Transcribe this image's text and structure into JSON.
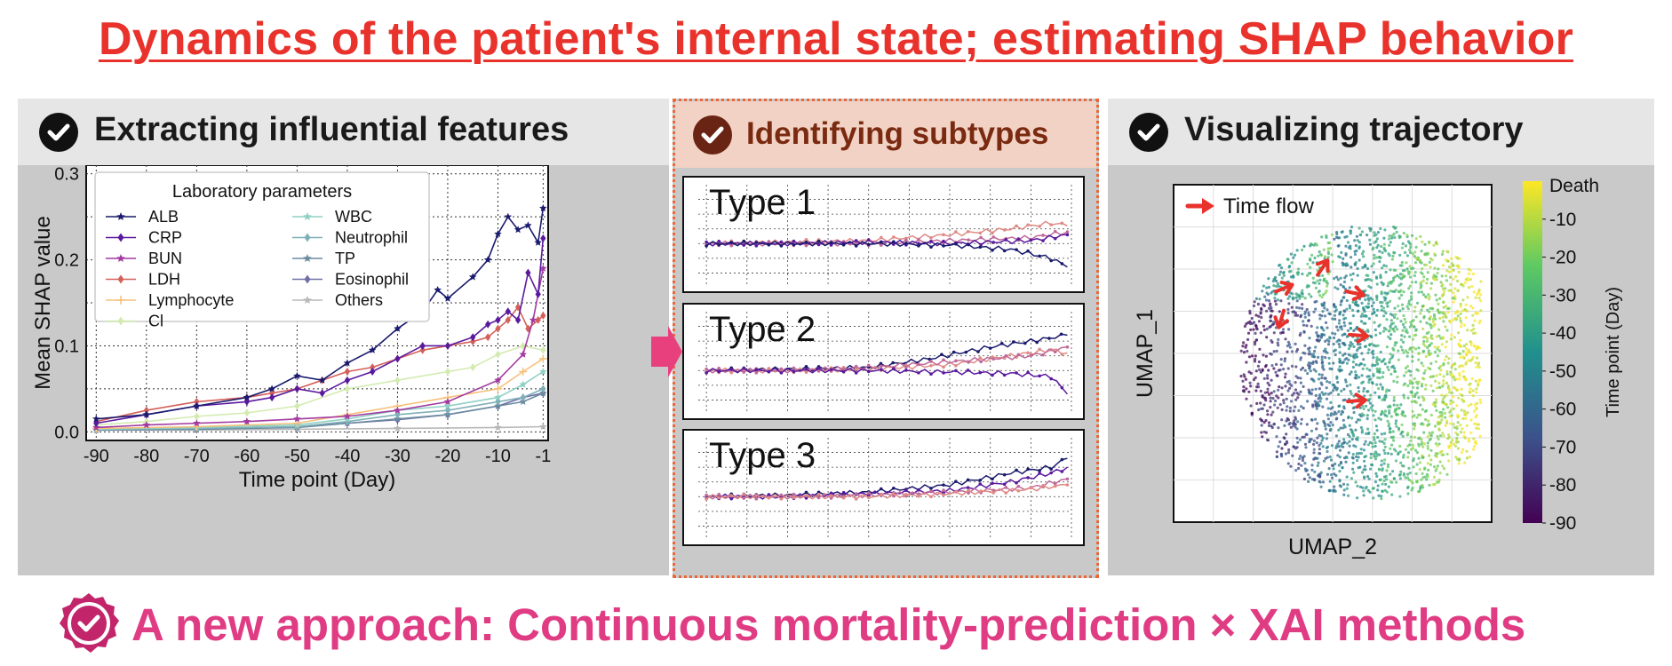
{
  "header": {
    "title": "Dynamics of the patient's internal state; estimating SHAP behavior"
  },
  "panels": {
    "extract": {
      "title": "Extracting influential features"
    },
    "subtypes": {
      "title": "Identifying subtypes",
      "types": [
        "Type 1",
        "Type 2",
        "Type 3"
      ]
    },
    "trajectory": {
      "title": "Visualizing trajectory"
    }
  },
  "footer": {
    "text": "A new approach: Continuous mortality-prediction × XAI methods"
  },
  "colors": {
    "title": "#e8322b",
    "footer": "#e03c84",
    "check": "#111111",
    "arrow": "#e8322b"
  },
  "chart_data": [
    {
      "type": "line",
      "title": "",
      "xlabel": "Time point (Day)",
      "ylabel": "Mean SHAP value",
      "xlim": [
        -92,
        0
      ],
      "ylim": [
        -0.01,
        0.31
      ],
      "x_ticks": [
        -90,
        -80,
        -70,
        -60,
        -50,
        -40,
        -30,
        -20,
        -10,
        -1
      ],
      "y_ticks": [
        0.0,
        0.1,
        0.2,
        0.3
      ],
      "grid": true,
      "legend": {
        "title": "Laboratory parameters",
        "position": "top-left"
      },
      "series": [
        {
          "name": "ALB",
          "color": "#1a1a6e",
          "marker": "star",
          "values": [
            [
              -90,
              0.015
            ],
            [
              -80,
              0.02
            ],
            [
              -70,
              0.03
            ],
            [
              -60,
              0.04
            ],
            [
              -55,
              0.05
            ],
            [
              -50,
              0.065
            ],
            [
              -45,
              0.06
            ],
            [
              -40,
              0.08
            ],
            [
              -35,
              0.095
            ],
            [
              -30,
              0.12
            ],
            [
              -25,
              0.14
            ],
            [
              -22,
              0.165
            ],
            [
              -20,
              0.155
            ],
            [
              -15,
              0.18
            ],
            [
              -12,
              0.2
            ],
            [
              -10,
              0.23
            ],
            [
              -8,
              0.25
            ],
            [
              -6,
              0.235
            ],
            [
              -4,
              0.24
            ],
            [
              -2,
              0.22
            ],
            [
              -1,
              0.26
            ]
          ]
        },
        {
          "name": "CRP",
          "color": "#5b1a9e",
          "marker": "diamond",
          "values": [
            [
              -90,
              0.01
            ],
            [
              -80,
              0.02
            ],
            [
              -70,
              0.03
            ],
            [
              -60,
              0.035
            ],
            [
              -55,
              0.04
            ],
            [
              -50,
              0.05
            ],
            [
              -45,
              0.045
            ],
            [
              -40,
              0.06
            ],
            [
              -35,
              0.07
            ],
            [
              -30,
              0.085
            ],
            [
              -25,
              0.1
            ],
            [
              -20,
              0.1
            ],
            [
              -15,
              0.11
            ],
            [
              -12,
              0.125
            ],
            [
              -10,
              0.13
            ],
            [
              -8,
              0.14
            ],
            [
              -6,
              0.13
            ],
            [
              -4,
              0.185
            ],
            [
              -2,
              0.16
            ],
            [
              -1,
              0.225
            ]
          ]
        },
        {
          "name": "BUN",
          "color": "#a33aa0",
          "marker": "star",
          "values": [
            [
              -90,
              0.005
            ],
            [
              -80,
              0.008
            ],
            [
              -70,
              0.01
            ],
            [
              -60,
              0.012
            ],
            [
              -50,
              0.015
            ],
            [
              -40,
              0.018
            ],
            [
              -30,
              0.025
            ],
            [
              -20,
              0.035
            ],
            [
              -10,
              0.06
            ],
            [
              -5,
              0.09
            ],
            [
              -3,
              0.13
            ],
            [
              -1,
              0.19
            ]
          ]
        },
        {
          "name": "LDH",
          "color": "#d4605a",
          "marker": "diamond",
          "values": [
            [
              -90,
              0.012
            ],
            [
              -80,
              0.025
            ],
            [
              -70,
              0.035
            ],
            [
              -60,
              0.04
            ],
            [
              -55,
              0.045
            ],
            [
              -50,
              0.05
            ],
            [
              -45,
              0.06
            ],
            [
              -40,
              0.07
            ],
            [
              -35,
              0.075
            ],
            [
              -30,
              0.085
            ],
            [
              -25,
              0.095
            ],
            [
              -20,
              0.1
            ],
            [
              -15,
              0.105
            ],
            [
              -12,
              0.11
            ],
            [
              -10,
              0.12
            ],
            [
              -8,
              0.13
            ],
            [
              -6,
              0.145
            ],
            [
              -4,
              0.12
            ],
            [
              -2,
              0.13
            ],
            [
              -1,
              0.135
            ]
          ]
        },
        {
          "name": "Lymphocyte",
          "color": "#f6c07a",
          "marker": "plus",
          "values": [
            [
              -90,
              0.004
            ],
            [
              -70,
              0.006
            ],
            [
              -50,
              0.01
            ],
            [
              -40,
              0.02
            ],
            [
              -30,
              0.03
            ],
            [
              -20,
              0.04
            ],
            [
              -10,
              0.05
            ],
            [
              -5,
              0.07
            ],
            [
              -1,
              0.085
            ]
          ]
        },
        {
          "name": "Cl",
          "color": "#d3ebb0",
          "marker": "diamond",
          "values": [
            [
              -90,
              0.008
            ],
            [
              -80,
              0.012
            ],
            [
              -70,
              0.018
            ],
            [
              -60,
              0.022
            ],
            [
              -50,
              0.03
            ],
            [
              -40,
              0.05
            ],
            [
              -30,
              0.06
            ],
            [
              -20,
              0.07
            ],
            [
              -15,
              0.075
            ],
            [
              -10,
              0.09
            ],
            [
              -5,
              0.1
            ],
            [
              -1,
              0.095
            ]
          ]
        },
        {
          "name": "WBC",
          "color": "#8fd0c4",
          "marker": "star",
          "values": [
            [
              -90,
              0.003
            ],
            [
              -70,
              0.005
            ],
            [
              -50,
              0.008
            ],
            [
              -40,
              0.015
            ],
            [
              -30,
              0.025
            ],
            [
              -20,
              0.03
            ],
            [
              -10,
              0.04
            ],
            [
              -5,
              0.055
            ],
            [
              -1,
              0.07
            ]
          ]
        },
        {
          "name": "Neutrophil",
          "color": "#7fb0b8",
          "marker": "diamond",
          "values": [
            [
              -90,
              0.003
            ],
            [
              -70,
              0.004
            ],
            [
              -50,
              0.006
            ],
            [
              -40,
              0.012
            ],
            [
              -30,
              0.02
            ],
            [
              -20,
              0.025
            ],
            [
              -10,
              0.035
            ],
            [
              -5,
              0.04
            ],
            [
              -1,
              0.05
            ]
          ]
        },
        {
          "name": "TP",
          "color": "#6a8aa0",
          "marker": "star",
          "values": [
            [
              -90,
              0.002
            ],
            [
              -70,
              0.003
            ],
            [
              -50,
              0.005
            ],
            [
              -40,
              0.01
            ],
            [
              -30,
              0.015
            ],
            [
              -20,
              0.02
            ],
            [
              -10,
              0.03
            ],
            [
              -5,
              0.035
            ],
            [
              -1,
              0.045
            ]
          ]
        },
        {
          "name": "Eosinophil",
          "color": "#7070a8",
          "marker": "diamond",
          "values": [
            [
              -90,
              0.002
            ],
            [
              -70,
              0.003
            ],
            [
              -50,
              0.006
            ],
            [
              -40,
              0.01
            ],
            [
              -30,
              0.014
            ],
            [
              -20,
              0.02
            ],
            [
              -10,
              0.03
            ],
            [
              -5,
              0.04
            ],
            [
              -1,
              0.045
            ]
          ]
        },
        {
          "name": "Others",
          "color": "#b8b8b8",
          "marker": "star",
          "values": [
            [
              -90,
              0.002
            ],
            [
              -70,
              0.002
            ],
            [
              -50,
              0.003
            ],
            [
              -30,
              0.004
            ],
            [
              -10,
              0.005
            ],
            [
              -1,
              0.006
            ]
          ]
        }
      ]
    },
    {
      "type": "line",
      "title": "Type 1",
      "xlim": [
        -92,
        0
      ],
      "ylim": [
        -0.05,
        0.3
      ],
      "grid": true,
      "series": [
        {
          "color": "#e08a86",
          "values": [
            [
              -90,
              0.1
            ],
            [
              -70,
              0.105
            ],
            [
              -50,
              0.11
            ],
            [
              -30,
              0.13
            ],
            [
              -15,
              0.15
            ],
            [
              -5,
              0.17
            ],
            [
              -1,
              0.16
            ]
          ]
        },
        {
          "color": "#c06a9a",
          "values": [
            [
              -90,
              0.1
            ],
            [
              -70,
              0.1
            ],
            [
              -50,
              0.1
            ],
            [
              -30,
              0.11
            ],
            [
              -10,
              0.12
            ],
            [
              -1,
              0.14
            ]
          ]
        },
        {
          "color": "#5b1a9e",
          "values": [
            [
              -90,
              0.1
            ],
            [
              -70,
              0.1
            ],
            [
              -50,
              0.105
            ],
            [
              -30,
              0.1
            ],
            [
              -10,
              0.11
            ],
            [
              -1,
              0.13
            ]
          ]
        },
        {
          "color": "#1a1a6e",
          "values": [
            [
              -90,
              0.1
            ],
            [
              -70,
              0.1
            ],
            [
              -50,
              0.1
            ],
            [
              -30,
              0.095
            ],
            [
              -15,
              0.08
            ],
            [
              -5,
              0.05
            ],
            [
              -1,
              0.02
            ]
          ]
        }
      ]
    },
    {
      "type": "line",
      "title": "Type 2",
      "xlim": [
        -92,
        0
      ],
      "ylim": [
        -0.05,
        0.3
      ],
      "grid": true,
      "series": [
        {
          "color": "#1a1a6e",
          "values": [
            [
              -90,
              0.1
            ],
            [
              -70,
              0.105
            ],
            [
              -50,
              0.11
            ],
            [
              -35,
              0.14
            ],
            [
              -20,
              0.18
            ],
            [
              -10,
              0.2
            ],
            [
              -1,
              0.22
            ]
          ]
        },
        {
          "color": "#e08a86",
          "values": [
            [
              -90,
              0.1
            ],
            [
              -70,
              0.1
            ],
            [
              -50,
              0.105
            ],
            [
              -30,
              0.12
            ],
            [
              -15,
              0.15
            ],
            [
              -5,
              0.17
            ],
            [
              -1,
              0.16
            ]
          ]
        },
        {
          "color": "#c06a9a",
          "values": [
            [
              -90,
              0.1
            ],
            [
              -70,
              0.1
            ],
            [
              -50,
              0.11
            ],
            [
              -30,
              0.13
            ],
            [
              -10,
              0.15
            ],
            [
              -1,
              0.18
            ]
          ]
        },
        {
          "color": "#5b1a9e",
          "values": [
            [
              -90,
              0.1
            ],
            [
              -70,
              0.1
            ],
            [
              -50,
              0.1
            ],
            [
              -30,
              0.095
            ],
            [
              -15,
              0.09
            ],
            [
              -5,
              0.08
            ],
            [
              -1,
              0.02
            ]
          ]
        }
      ]
    },
    {
      "type": "line",
      "title": "Type 3",
      "xlim": [
        -92,
        0
      ],
      "ylim": [
        -0.05,
        0.3
      ],
      "grid": true,
      "series": [
        {
          "color": "#1a1a6e",
          "values": [
            [
              -90,
              0.1
            ],
            [
              -70,
              0.105
            ],
            [
              -50,
              0.115
            ],
            [
              -30,
              0.14
            ],
            [
              -15,
              0.18
            ],
            [
              -5,
              0.2
            ],
            [
              -1,
              0.23
            ]
          ]
        },
        {
          "color": "#5b1a9e",
          "values": [
            [
              -90,
              0.1
            ],
            [
              -70,
              0.1
            ],
            [
              -50,
              0.11
            ],
            [
              -30,
              0.12
            ],
            [
              -15,
              0.15
            ],
            [
              -5,
              0.18
            ],
            [
              -1,
              0.2
            ]
          ]
        },
        {
          "color": "#c06a9a",
          "values": [
            [
              -90,
              0.1
            ],
            [
              -70,
              0.1
            ],
            [
              -50,
              0.105
            ],
            [
              -30,
              0.115
            ],
            [
              -10,
              0.13
            ],
            [
              -1,
              0.16
            ]
          ]
        },
        {
          "color": "#e08a86",
          "values": [
            [
              -90,
              0.1
            ],
            [
              -70,
              0.1
            ],
            [
              -50,
              0.1
            ],
            [
              -30,
              0.11
            ],
            [
              -10,
              0.125
            ],
            [
              -1,
              0.14
            ]
          ]
        }
      ]
    },
    {
      "type": "scatter",
      "title": "",
      "xlabel": "UMAP_2",
      "ylabel": "UMAP_1",
      "annotation": "Time flow",
      "grid": true,
      "colorbar": {
        "label": "Time point (Day)",
        "ticks": [
          -10,
          -20,
          -30,
          -40,
          -50,
          -60,
          -70,
          -80,
          -90
        ],
        "top_label": "Death",
        "range": [
          -90,
          0
        ],
        "colors": [
          "#440154",
          "#3b528b",
          "#21908d",
          "#5dc963",
          "#fde725"
        ]
      }
    }
  ]
}
